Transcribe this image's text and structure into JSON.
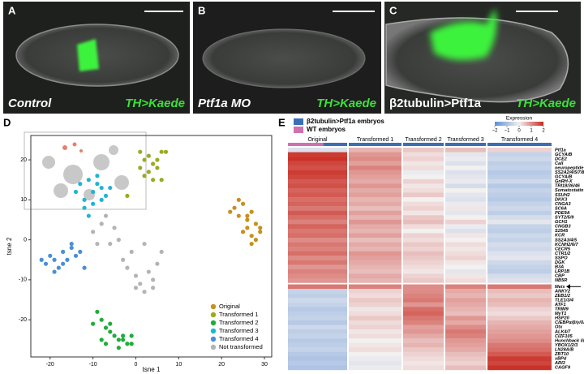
{
  "panels": [
    {
      "letter": "A",
      "label": "Control",
      "reporter": "TH>Kaede"
    },
    {
      "letter": "B",
      "label": "Ptf1a MO",
      "reporter": "TH>Kaede"
    },
    {
      "letter": "C",
      "label": "β2tubulin>Ptf1a",
      "reporter": "TH>Kaede"
    }
  ],
  "chart_data": [
    {
      "type": "scatter",
      "panel_label": "D",
      "x_label": "tsne 1",
      "y_label": "tsne 2",
      "xlim": [
        -24.5,
        31.7
      ],
      "ylim": [
        -29.3,
        26.1
      ],
      "xticks": [
        -20,
        -10,
        0,
        10,
        20,
        30
      ],
      "yticks": [
        -20,
        -10,
        0,
        10,
        20
      ],
      "legend": "lower right",
      "series": [
        {
          "name": "Original",
          "color": "#c8901e",
          "x": [
            23,
            24,
            25,
            26,
            27,
            28,
            29,
            25,
            26,
            27,
            28,
            24,
            26,
            29,
            22,
            27
          ],
          "y": [
            8,
            6,
            9,
            5,
            7,
            4,
            3,
            2,
            3,
            1,
            0,
            10,
            6,
            2,
            7,
            -1
          ]
        },
        {
          "name": "Transformed 1",
          "color": "#9aab22",
          "x": [
            1,
            2,
            3,
            4,
            5,
            6,
            3,
            2,
            4,
            5,
            1,
            6,
            7,
            -2
          ],
          "y": [
            22,
            20,
            21,
            19,
            20,
            22,
            17,
            16,
            15,
            18,
            18,
            15,
            22,
            11
          ]
        },
        {
          "name": "Transformed 2",
          "color": "#1fae3b",
          "x": [
            -9,
            -8,
            -7,
            -6,
            -5,
            -4,
            -3,
            -2,
            -1,
            -6,
            -4,
            -8,
            -10,
            -7,
            -3,
            -1
          ],
          "y": [
            -18,
            -20,
            -22,
            -23,
            -24,
            -25,
            -24,
            -26,
            -26,
            -21,
            -27,
            -25,
            -21,
            -26,
            -25,
            -24
          ]
        },
        {
          "name": "Transformed 3",
          "color": "#22b5d5",
          "x": [
            -14,
            -13,
            -12,
            -11,
            -10,
            -9,
            -8,
            -7,
            -12,
            -10,
            -8,
            -11,
            -9,
            -6
          ],
          "y": [
            12,
            14,
            10,
            15,
            12,
            14,
            10,
            11,
            8,
            9,
            13,
            6,
            16,
            13
          ]
        },
        {
          "name": "Transformed 4",
          "color": "#4a8fd9",
          "x": [
            -22,
            -21,
            -20,
            -19,
            -18,
            -17,
            -16,
            -15,
            -14,
            -13,
            -19,
            -17,
            -15,
            -12
          ],
          "y": [
            -5,
            -6,
            -4,
            -5,
            -7,
            -3,
            -5,
            -2,
            -4,
            -3,
            -8,
            -6,
            -1,
            -7
          ]
        },
        {
          "name": "Not transformed",
          "color": "#b4b4b4",
          "x": [
            -10,
            -8,
            -6,
            -5,
            -3,
            -2,
            0,
            1,
            2,
            3,
            4,
            5,
            6,
            -4,
            -7,
            -1,
            2,
            0,
            -9,
            4
          ],
          "y": [
            2,
            4,
            -1,
            3,
            -5,
            -7,
            -9,
            -11,
            -13,
            -8,
            -10,
            -6,
            -3,
            0,
            6,
            -3,
            -1,
            -12,
            -1,
            -12
          ]
        }
      ]
    },
    {
      "type": "heatmap",
      "panel_label": "E",
      "legend_title": "Expression",
      "conditions": [
        {
          "name": "β2tubulin>Ptf1a embryos",
          "color": "#3a6fb5"
        },
        {
          "name": "WT embryos",
          "color": "#d070b0"
        }
      ],
      "clim": [
        -2,
        2
      ],
      "cticks": [
        {
          "value": -2,
          "label": "−2"
        },
        {
          "value": -1,
          "label": "−1"
        },
        0,
        1,
        2
      ],
      "categories": [
        "Original",
        "Transformed 1",
        "Transformed 2",
        "Transformed 3",
        "Transformed 4"
      ],
      "genes": [
        "Ptf1a",
        "GCYA/B",
        "DCE2",
        "Call",
        "neuropeptide 00975",
        "SS2A2/4/5/7/8",
        "GCYA/B",
        "GnRH-X",
        "TRI18/36/46",
        "Somatostatin R",
        "SSUH2",
        "DKK3",
        "CNGA3",
        "SC6A",
        "PDE9A",
        "SYT2/5/9",
        "GCH1",
        "CNGB3",
        "S2545",
        "KCR",
        "SS2A3/4/5",
        "KCNH2/6/7",
        "CECR5",
        "CTR1/2",
        "SSPO",
        "DGK",
        "B3A",
        "LRP1B",
        "CBP",
        "NB5R",
        "Meis",
        "ANKY2",
        "ZEB1/2",
        "TLE1/3/4",
        "ATF1",
        "TRIM9",
        "MyT1",
        "HSP20",
        "C/EBPα/β/γ/δ/ε",
        "Otx",
        "ALK4/7",
        "CIZF105",
        "Hunchback like",
        "YBOX1/2/3",
        "LN28A/B",
        "ZBT10",
        "xBPd",
        "ARI3",
        "CAGF9"
      ],
      "values": [
        [
          -0.3,
          0.6,
          0.4,
          0.5,
          0.3
        ],
        [
          1.8,
          0.9,
          0.2,
          -0.2,
          -0.6
        ],
        [
          1.9,
          1.0,
          0.3,
          -0.1,
          -0.5
        ],
        [
          1.7,
          0.8,
          0.1,
          -0.3,
          -0.7
        ],
        [
          1.6,
          1.1,
          0.2,
          0.0,
          -0.6
        ],
        [
          1.8,
          0.9,
          -0.1,
          -0.3,
          -0.8
        ],
        [
          1.7,
          0.8,
          0.0,
          -0.2,
          -0.7
        ],
        [
          1.5,
          0.7,
          0.3,
          -0.1,
          -0.5
        ],
        [
          1.6,
          0.9,
          0.1,
          -0.4,
          -0.8
        ],
        [
          1.4,
          0.7,
          0.2,
          0.0,
          -0.6
        ],
        [
          1.5,
          0.8,
          0.4,
          -0.2,
          -0.7
        ],
        [
          1.3,
          0.6,
          0.0,
          -0.3,
          -0.8
        ],
        [
          1.4,
          0.7,
          0.2,
          -0.1,
          -0.6
        ],
        [
          1.2,
          0.5,
          0.3,
          0.1,
          -0.5
        ],
        [
          1.5,
          0.8,
          0.1,
          -0.2,
          -0.7
        ],
        [
          1.3,
          0.6,
          0.4,
          0.0,
          -0.4
        ],
        [
          1.1,
          0.9,
          0.5,
          0.3,
          -0.2
        ],
        [
          1.4,
          0.7,
          0.2,
          -0.1,
          -0.6
        ],
        [
          1.2,
          0.6,
          0.0,
          -0.3,
          -0.7
        ],
        [
          1.3,
          0.8,
          0.3,
          0.1,
          -0.5
        ],
        [
          1.0,
          0.5,
          0.2,
          0.0,
          -0.6
        ],
        [
          1.2,
          0.7,
          0.4,
          0.2,
          -0.4
        ],
        [
          1.1,
          0.6,
          0.3,
          0.1,
          -0.5
        ],
        [
          1.3,
          0.9,
          0.5,
          0.2,
          -0.3
        ],
        [
          1.0,
          0.8,
          0.4,
          0.3,
          -0.2
        ],
        [
          1.2,
          0.7,
          0.3,
          0.1,
          -0.5
        ],
        [
          0.9,
          0.6,
          0.2,
          0.0,
          -0.6
        ],
        [
          1.1,
          0.5,
          0.1,
          -0.2,
          -0.7
        ],
        [
          1.0,
          0.7,
          0.3,
          0.1,
          -0.4
        ],
        [
          0.9,
          0.6,
          0.4,
          0.2,
          -0.3
        ],
        [
          1.2,
          1.1,
          1.0,
          1.1,
          1.2
        ],
        [
          -0.6,
          0.3,
          1.0,
          0.7,
          0.5
        ],
        [
          -0.7,
          0.2,
          1.1,
          0.6,
          0.4
        ],
        [
          -0.5,
          0.4,
          1.2,
          0.8,
          0.6
        ],
        [
          -0.6,
          0.3,
          0.9,
          0.7,
          0.5
        ],
        [
          -0.8,
          0.1,
          1.3,
          0.6,
          0.3
        ],
        [
          -0.7,
          0.2,
          1.4,
          0.5,
          0.2
        ],
        [
          -0.6,
          0.4,
          1.2,
          0.9,
          0.4
        ],
        [
          -0.8,
          0.2,
          1.1,
          0.7,
          0.6
        ],
        [
          -0.5,
          0.3,
          0.8,
          1.0,
          0.7
        ],
        [
          -0.7,
          0.1,
          0.9,
          1.2,
          0.8
        ],
        [
          -0.6,
          0.2,
          0.7,
          1.1,
          0.9
        ],
        [
          -0.8,
          0.0,
          0.5,
          0.9,
          1.0
        ],
        [
          -0.7,
          0.1,
          0.6,
          0.8,
          1.2
        ],
        [
          -0.6,
          0.2,
          0.4,
          0.7,
          1.3
        ],
        [
          -0.8,
          0.0,
          0.3,
          0.5,
          1.5
        ],
        [
          -0.9,
          -0.1,
          0.2,
          0.4,
          1.8
        ],
        [
          -0.8,
          -0.2,
          0.1,
          0.3,
          1.7
        ],
        [
          -0.9,
          -0.1,
          0.2,
          0.5,
          1.9
        ]
      ]
    }
  ]
}
